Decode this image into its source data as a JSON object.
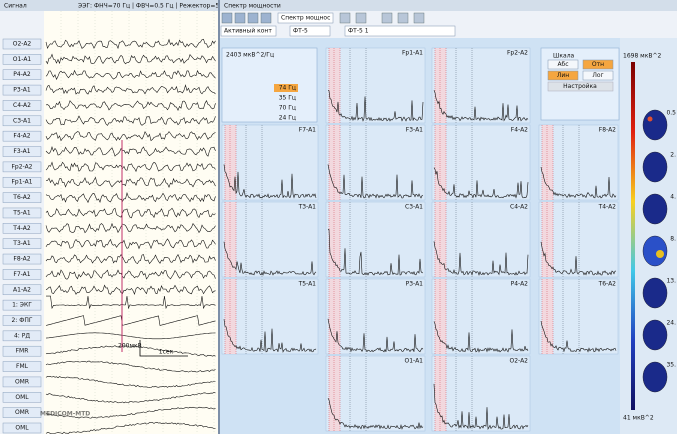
{
  "signal_panel": {
    "title": "Сигнал",
    "filter_info": "ЭЭГ: ФНЧ=70 Гц | ФВЧ=0.5 Гц | Режектор=50 Гц",
    "channels": [
      "O2-A2",
      "O1-A1",
      "P4-A2",
      "P3-A1",
      "C4-A2",
      "C3-A1",
      "F4-A2",
      "F3-A1",
      "Fp2-A2",
      "Fp1-A1",
      "T6-A2",
      "T5-A1",
      "T4-A2",
      "T3-A1",
      "F8-A2",
      "F7-A1",
      "A1-A2",
      "1: ЭКГ",
      "2: ФПГ",
      "4: РД",
      "FMR",
      "FML",
      "OMR",
      "OML",
      "OMR",
      "OML"
    ],
    "scale_amplitude": "200мкВ",
    "scale_time": "1сек",
    "watermark": "MEDICOM-MTD"
  },
  "spectrum_panel": {
    "title": "Спектр мощности",
    "toolbar": {
      "view": "Спектр мощнос",
      "contour": "Активный конт",
      "montage1": "ФТ-5",
      "montage2": "ФТ-5 1"
    },
    "amplitude_label": "2403 мкВ^2/Гц",
    "frequencies": [
      "74 Гц",
      "35 Гц",
      "70 Гц",
      "24 Гц"
    ],
    "scale": {
      "title": "Шкала",
      "buttons": [
        "Абс",
        "Отн",
        "Лин",
        "Лог"
      ],
      "settings": "Настройка"
    },
    "plot_rows": [
      [
        null,
        "Fp1-A1",
        "Fp2-A2",
        null
      ],
      [
        "F7-A1",
        "F3-A1",
        "F4-A2",
        "F8-A2"
      ],
      [
        "T3-A1",
        "C3-A1",
        "C4-A2",
        "T4-A2"
      ],
      [
        "T5-A1",
        "P3-A1",
        "P4-A2",
        "T6-A2"
      ],
      [
        null,
        "O1-A1",
        "O2-A2",
        null
      ]
    ],
    "colorbar": {
      "max_label": "1698 мкВ^2",
      "min_label": "41 мкВ^2",
      "map_labels": [
        "0.5",
        "2.",
        "4.",
        "8.",
        "13.",
        "24.",
        "35."
      ]
    }
  }
}
